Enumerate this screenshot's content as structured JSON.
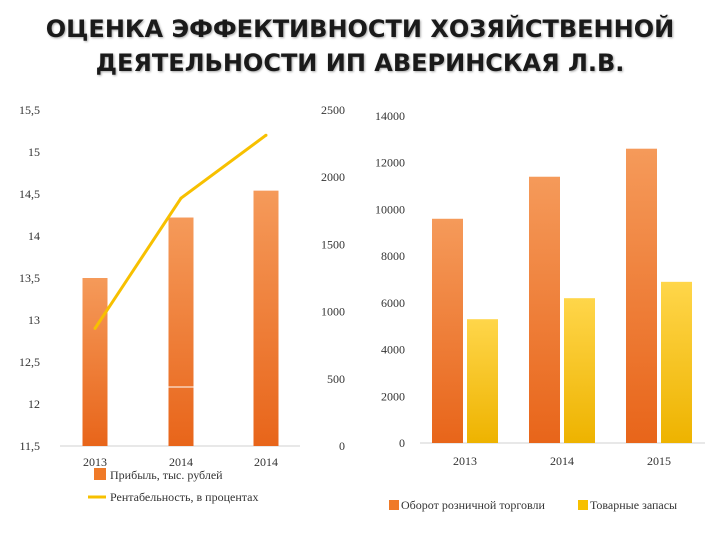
{
  "title": {
    "line1": "ОЦЕНКА ЭФФЕКТИВНОСТИ ХОЗЯЙСТВЕННОЙ",
    "line2": "ДЕЯТЕЛЬНОСТИ ИП АВЕРИНСКАЯ Л.В."
  },
  "chart_data": [
    {
      "type": "bar",
      "categories": [
        "2013",
        "2014",
        "2014"
      ],
      "series": [
        {
          "name": "Прибыль, тыс. рублей",
          "axis": "right",
          "values": [
            1250,
            1700,
            1900
          ],
          "color": "#f07a28"
        },
        {
          "name": "Рентабельность, в процентах",
          "axis": "left",
          "type": "line",
          "values": [
            12.9,
            14.45,
            15.2
          ],
          "color": "#f7c000"
        }
      ],
      "y_left": {
        "ticks": [
          "15,5",
          "15",
          "14,5",
          "14",
          "13,5",
          "13",
          "12,5",
          "12",
          "11,5"
        ],
        "ylim": [
          11.5,
          15.5
        ]
      },
      "y_right": {
        "ticks": [
          "2500",
          "2000",
          "1500",
          "1000",
          "500",
          "0"
        ],
        "ylim": [
          0,
          2500
        ]
      },
      "grid": false,
      "legend": "bottom"
    },
    {
      "type": "bar",
      "categories": [
        "2013",
        "2014",
        "2015"
      ],
      "series": [
        {
          "name": "Оборот розничной торговли",
          "values": [
            9600,
            11400,
            12600
          ],
          "color": "#f07a28"
        },
        {
          "name": "Товарные запасы",
          "values": [
            5300,
            6200,
            6900
          ],
          "color": "#f7c000"
        }
      ],
      "y_ticks": [
        "14000",
        "12000",
        "10000",
        "8000",
        "6000",
        "4000",
        "2000",
        "0"
      ],
      "ylim": [
        0,
        14000
      ],
      "grid": false,
      "legend": "bottom"
    }
  ]
}
